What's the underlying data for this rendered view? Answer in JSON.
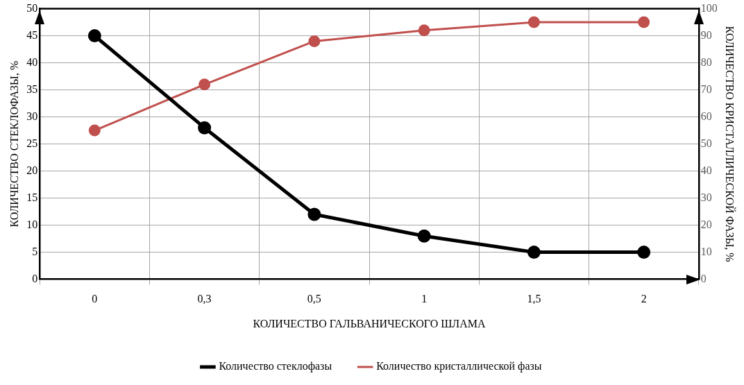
{
  "chart_data": {
    "type": "line",
    "xlabel": "КОЛИЧЕСТВО ГАЛЬВАНИЧЕСКОГО ШЛАМА",
    "ylabel": "КОЛИЧЕСТВО СТЕКЛОФАЗЫ, %",
    "y2label": "КОЛИЧЕСТВО КРИСТАЛЛИЧЕСКОЙ ФАЗЫ, %",
    "categories": [
      "0",
      "0,3",
      "0,5",
      "1",
      "1,5",
      "2"
    ],
    "series": [
      {
        "name": "Количество стеклофазы",
        "color": "#000000",
        "values": [
          45,
          28,
          12,
          8,
          5,
          5
        ]
      },
      {
        "name": "Количество кристаллической фазы",
        "color": "#c0504d",
        "values": [
          55,
          72,
          88,
          92,
          95,
          95
        ],
        "axis": "y2"
      }
    ],
    "ylim": [
      0,
      50
    ],
    "yticks": [
      0,
      5,
      10,
      15,
      20,
      25,
      30,
      35,
      40,
      45,
      50
    ],
    "y2lim": [
      0,
      100
    ],
    "y2ticks": [
      0,
      10,
      20,
      30,
      40,
      50,
      60,
      70,
      80,
      90,
      100
    ],
    "grid": true,
    "legend": "bottom",
    "marker": "circle",
    "line_style": "solid"
  }
}
